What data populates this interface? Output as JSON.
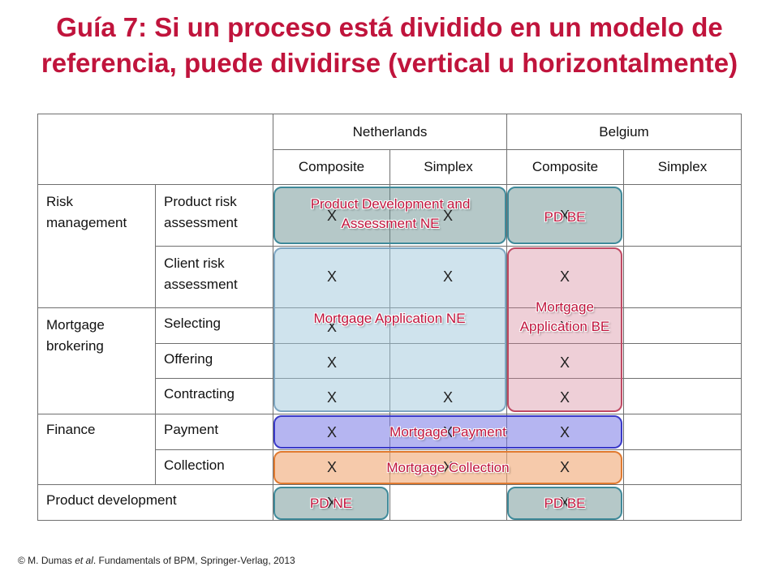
{
  "title": "Guía 7: Si un proceso está dividido en un modelo de referencia, puede dividirse (vertical u horizontalmente)",
  "table": {
    "countries": [
      "Netherlands",
      "Belgium"
    ],
    "subheaders": [
      "Composite",
      "Simplex",
      "Composite",
      "Simplex"
    ],
    "groups": [
      "Risk management",
      "Mortgage brokering",
      "Finance"
    ],
    "rows": [
      "Product risk assessment",
      "Client risk assessment",
      "Selecting",
      "Offering",
      "Contracting",
      "Payment",
      "Collection"
    ],
    "product_development": "Product development",
    "mark": "X"
  },
  "blocks": {
    "product_dev_ne": "Product Development and Assessment NE",
    "pd_be_top": "PD BE",
    "mortgage_app_ne": "Mortgage Application NE",
    "mortgage_app_be": "Mortgage Application BE",
    "mortgage_payment": "Mortgage Payment",
    "mortgage_collection": "Mortgage Collection",
    "pd_ne": "PD NE",
    "pd_be_bottom": "PD BE"
  },
  "footer": {
    "prefix": "© M. Dumas",
    "etal": "et al",
    "rest": ". Fundamentals of BPM, Springer-Verlag, 2013"
  }
}
